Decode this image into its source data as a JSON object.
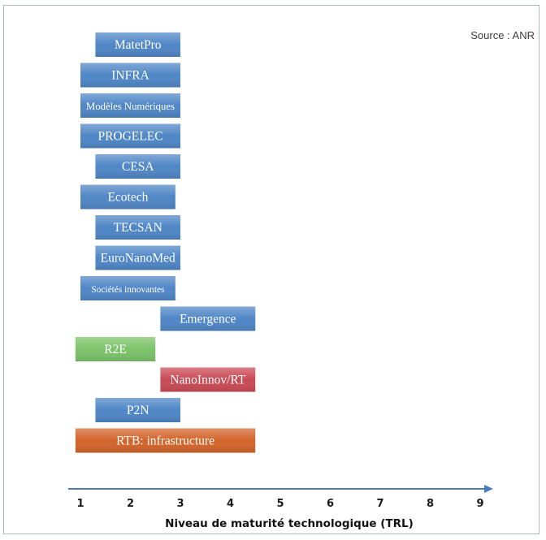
{
  "source_note": "Source : ANR",
  "chart_data": {
    "type": "bar",
    "orientation": "horizontal-range",
    "title": "",
    "xlabel": "Niveau de maturité technologique (TRL)",
    "ylabel": "",
    "xlim": [
      1,
      9
    ],
    "x_ticks": [
      "1",
      "2",
      "3",
      "4",
      "5",
      "6",
      "7",
      "8",
      "9"
    ],
    "grid": false,
    "legend": "none",
    "bars": [
      {
        "label": "MatetPro",
        "start": 1.3,
        "end": 3.0,
        "color": "#4f86c6"
      },
      {
        "label": "INFRA",
        "start": 1.0,
        "end": 3.0,
        "color": "#4f86c6"
      },
      {
        "label": "Modèles Numériques",
        "start": 1.0,
        "end": 3.0,
        "color": "#4f86c6"
      },
      {
        "label": "PROGELEC",
        "start": 1.0,
        "end": 3.0,
        "color": "#4f86c6"
      },
      {
        "label": "CESA",
        "start": 1.3,
        "end": 3.0,
        "color": "#4f86c6"
      },
      {
        "label": "Ecotech",
        "start": 1.0,
        "end": 2.9,
        "color": "#4f86c6"
      },
      {
        "label": "TECSAN",
        "start": 1.3,
        "end": 3.0,
        "color": "#4f86c6"
      },
      {
        "label": "EuroNanoMed",
        "start": 1.3,
        "end": 3.0,
        "color": "#4f86c6"
      },
      {
        "label": "Sociétés innovantes",
        "start": 1.0,
        "end": 2.9,
        "color": "#4f86c6"
      },
      {
        "label": "Emergence",
        "start": 2.6,
        "end": 4.5,
        "color": "#4f86c6"
      },
      {
        "label": "R2E",
        "start": 0.9,
        "end": 2.5,
        "color": "#7cc36a"
      },
      {
        "label": "NanoInnov/RT",
        "start": 2.6,
        "end": 4.5,
        "color": "#c94a55"
      },
      {
        "label": "P2N",
        "start": 1.3,
        "end": 3.0,
        "color": "#4f86c6"
      },
      {
        "label": "RTB: infrastructure",
        "start": 0.9,
        "end": 4.5,
        "color": "#d2642a"
      }
    ]
  },
  "colors": {
    "axis": "#4a7cc0",
    "frame": "#a9b9cc"
  }
}
